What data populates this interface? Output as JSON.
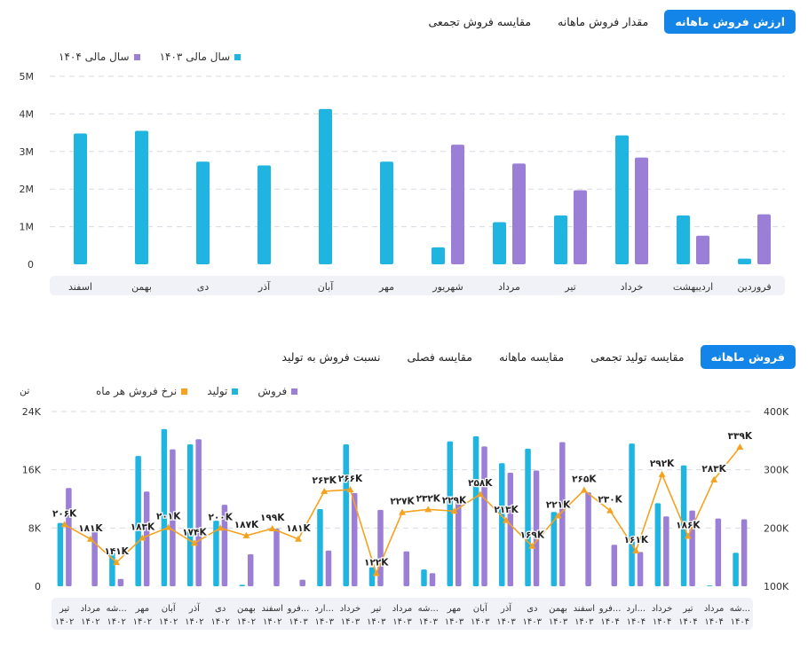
{
  "top_tabs": [
    {
      "label": "ارزش فروش ماهانه",
      "active": true
    },
    {
      "label": "مقدار فروش ماهانه",
      "active": false
    },
    {
      "label": "مقایسه فروش تجمعی",
      "active": false
    }
  ],
  "bottom_tabs": [
    {
      "label": "فروش ماهانه",
      "active": true
    },
    {
      "label": "مقایسه تولید تجمعی",
      "active": false
    },
    {
      "label": "مقایسه ماهانه",
      "active": false
    },
    {
      "label": "مقایسه فصلی",
      "active": false
    },
    {
      "label": "نسبت فروش به تولید",
      "active": false
    }
  ],
  "colors": {
    "cyan": "#1fb5e0",
    "purple": "#9b7fd6",
    "orange": "#f5a21f",
    "active_tab": "#1485e8"
  },
  "chart_data": [
    {
      "type": "bar",
      "categories": [
        "فروردین",
        "اردیبهشت",
        "خرداد",
        "تیر",
        "مرداد",
        "شهریور",
        "مهر",
        "آبان",
        "آذر",
        "دی",
        "بهمن",
        "اسفند"
      ],
      "series": [
        {
          "name": "سال مالی ۱۴۰۳",
          "color": "#1fb5e0",
          "values": [
            0.15,
            1.3,
            3.43,
            1.3,
            1.12,
            0.45,
            2.73,
            4.13,
            2.63,
            2.73,
            3.55,
            3.48
          ]
        },
        {
          "name": "سال مالی ۱۴۰۴",
          "color": "#9b7fd6",
          "values": [
            1.33,
            0.76,
            2.84,
            1.97,
            2.68,
            3.18,
            null,
            null,
            null,
            null,
            null,
            null
          ]
        }
      ],
      "y_unit": "M",
      "yticks": [
        "0",
        "1M",
        "2M",
        "3M",
        "4M",
        "5M"
      ],
      "ylim": [
        0,
        5
      ],
      "legend": "top-right",
      "grid": true
    },
    {
      "type": "bar+line",
      "categories": [
        [
          "تیر",
          "۱۴۰۲"
        ],
        [
          "مرداد",
          "۱۴۰۲"
        ],
        [
          "شه...",
          "۱۴۰۲"
        ],
        [
          "مهر",
          "۱۴۰۲"
        ],
        [
          "آبان",
          "۱۴۰۲"
        ],
        [
          "آذر",
          "۱۴۰۲"
        ],
        [
          "دی",
          "۱۴۰۲"
        ],
        [
          "بهمن",
          "۱۴۰۲"
        ],
        [
          "اسفند",
          "۱۴۰۲"
        ],
        [
          "فرو...",
          "۱۴۰۳"
        ],
        [
          "ارد...",
          "۱۴۰۳"
        ],
        [
          "خرداد",
          "۱۴۰۳"
        ],
        [
          "تیر",
          "۱۴۰۳"
        ],
        [
          "مرداد",
          "۱۴۰۳"
        ],
        [
          "شه...",
          "۱۴۰۳"
        ],
        [
          "مهر",
          "۱۴۰۳"
        ],
        [
          "آبان",
          "۱۴۰۳"
        ],
        [
          "آذر",
          "۱۴۰۳"
        ],
        [
          "دی",
          "۱۴۰۳"
        ],
        [
          "بهمن",
          "۱۴۰۳"
        ],
        [
          "اسفند",
          "۱۴۰۳"
        ],
        [
          "فرو...",
          "۱۴۰۴"
        ],
        [
          "ارد...",
          "۱۴۰۴"
        ],
        [
          "خرداد",
          "۱۴۰۴"
        ],
        [
          "تیر",
          "۱۴۰۴"
        ],
        [
          "مرداد",
          "۱۴۰۴"
        ],
        [
          "شه...",
          "۱۴۰۴"
        ]
      ],
      "series": [
        {
          "name": "تولید",
          "color": "#1fb5e0",
          "axis": "left",
          "values": [
            8.7,
            0,
            4.6,
            17.9,
            21.6,
            19.5,
            9,
            0.2,
            0,
            0,
            10.6,
            19.5,
            2.6,
            0,
            2.3,
            19.9,
            20.6,
            16.9,
            18.9,
            10.2,
            0,
            0,
            19.6,
            11.4,
            16.6,
            0.1,
            4.6
          ]
        },
        {
          "name": "فروش",
          "color": "#9b7fd6",
          "axis": "left",
          "values": [
            13.5,
            7.7,
            1,
            13,
            18.8,
            20.2,
            11.2,
            4.4,
            7.9,
            0.9,
            4.9,
            12.8,
            10.5,
            4.8,
            1.8,
            11.7,
            19.2,
            15.6,
            15.9,
            19.8,
            12.9,
            5.7,
            4.7,
            9.6,
            10.4,
            9.3,
            9.2
          ]
        },
        {
          "name": "نرخ فروش هر ماه",
          "color": "#f5a21f",
          "axis": "right",
          "values": [
            206,
            181,
            141,
            183,
            201,
            174,
            200,
            187,
            199,
            181,
            263,
            266,
            122,
            227,
            232,
            229,
            258,
            213,
            169,
            221,
            265,
            230,
            161,
            292,
            186,
            283,
            339
          ]
        }
      ],
      "line_labels": [
        "۲۰۶K",
        "۱۸۱K",
        "۱۴۱K",
        "۱۸۳K",
        "۲۰۱K",
        "۱۷۴K",
        "۲۰۰K",
        "۱۸۷K",
        "۱۹۹K",
        "۱۸۱K",
        "۲۶۳K",
        "۲۶۶K",
        "۱۲۲K",
        "۲۲۷K",
        "۲۳۲K",
        "۲۲۹K",
        "۲۵۸K",
        "۲۱۳K",
        "۱۶۹K",
        "۲۲۱K",
        "۲۶۵K",
        "۲۳۰K",
        "۱۶۱K",
        "۲۹۲K",
        "۱۸۶K",
        "۲۸۳K",
        "۳۳۹K"
      ],
      "left_axis": {
        "unit": "تن",
        "ticks": [
          "0",
          "8K",
          "16K",
          "24K"
        ],
        "ylim": [
          0,
          24
        ]
      },
      "right_axis": {
        "ticks": [
          "100K",
          "200K",
          "300K",
          "400K"
        ],
        "ylim": [
          100,
          400
        ]
      },
      "legend": "top-left",
      "grid": true
    }
  ]
}
